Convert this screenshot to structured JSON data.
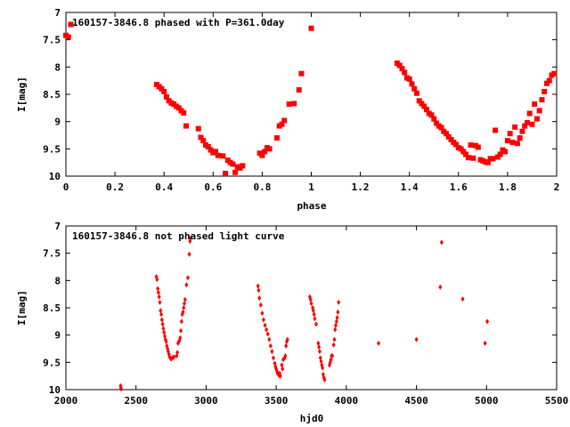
{
  "chart_data": [
    {
      "type": "scatter",
      "title": "160157-3846.8 phased with P=361.0day",
      "xlabel": "phase",
      "ylabel": "I[mag]",
      "xlim": [
        0,
        2
      ],
      "ylim": [
        10,
        7
      ],
      "y_inverted": true,
      "xticks": [
        0,
        0.2,
        0.4,
        0.6,
        0.8,
        1,
        1.2,
        1.4,
        1.6,
        1.8,
        2
      ],
      "xtick_labels": [
        "0",
        "0.2",
        "0.4",
        "0.6",
        "0.8",
        "1",
        "1.2",
        "1.4",
        "1.6",
        "1.8",
        "2"
      ],
      "yticks": [
        7,
        7.5,
        8,
        8.5,
        9,
        9.5,
        10
      ],
      "ytick_labels": [
        "7",
        "7.5",
        "8",
        "8.5",
        "9",
        "9.5",
        "10"
      ],
      "marker": "filled-square",
      "color": "#ff0000",
      "series": [
        {
          "points": [
            [
              0.0,
              7.42
            ],
            [
              0.01,
              7.45
            ],
            [
              0.02,
              7.22
            ],
            [
              0.37,
              8.32
            ],
            [
              0.38,
              8.36
            ],
            [
              0.39,
              8.4
            ],
            [
              0.4,
              8.45
            ],
            [
              0.41,
              8.55
            ],
            [
              0.42,
              8.62
            ],
            [
              0.43,
              8.66
            ],
            [
              0.44,
              8.68
            ],
            [
              0.45,
              8.72
            ],
            [
              0.46,
              8.75
            ],
            [
              0.47,
              8.8
            ],
            [
              0.48,
              8.84
            ],
            [
              0.49,
              9.08
            ],
            [
              0.54,
              9.13
            ],
            [
              0.55,
              9.29
            ],
            [
              0.56,
              9.35
            ],
            [
              0.57,
              9.43
            ],
            [
              0.58,
              9.46
            ],
            [
              0.59,
              9.52
            ],
            [
              0.6,
              9.57
            ],
            [
              0.61,
              9.55
            ],
            [
              0.62,
              9.62
            ],
            [
              0.64,
              9.63
            ],
            [
              0.65,
              9.95
            ],
            [
              0.66,
              9.71
            ],
            [
              0.67,
              9.75
            ],
            [
              0.68,
              9.78
            ],
            [
              0.69,
              9.93
            ],
            [
              0.7,
              9.83
            ],
            [
              0.71,
              9.85
            ],
            [
              0.72,
              9.81
            ],
            [
              0.79,
              9.58
            ],
            [
              0.8,
              9.62
            ],
            [
              0.81,
              9.55
            ],
            [
              0.82,
              9.48
            ],
            [
              0.83,
              9.5
            ],
            [
              0.86,
              9.3
            ],
            [
              0.87,
              9.08
            ],
            [
              0.88,
              9.05
            ],
            [
              0.89,
              8.98
            ],
            [
              0.91,
              8.68
            ],
            [
              0.93,
              8.67
            ],
            [
              0.95,
              8.42
            ],
            [
              0.96,
              8.12
            ],
            [
              1.0,
              7.29
            ],
            [
              1.35,
              7.93
            ],
            [
              1.36,
              7.97
            ],
            [
              1.37,
              8.03
            ],
            [
              1.38,
              8.1
            ],
            [
              1.39,
              8.2
            ],
            [
              1.4,
              8.22
            ],
            [
              1.41,
              8.31
            ],
            [
              1.42,
              8.4
            ],
            [
              1.43,
              8.48
            ],
            [
              1.44,
              8.62
            ],
            [
              1.45,
              8.67
            ],
            [
              1.46,
              8.72
            ],
            [
              1.47,
              8.78
            ],
            [
              1.48,
              8.85
            ],
            [
              1.49,
              8.88
            ],
            [
              1.5,
              8.95
            ],
            [
              1.51,
              9.03
            ],
            [
              1.52,
              9.08
            ],
            [
              1.53,
              9.11
            ],
            [
              1.54,
              9.18
            ],
            [
              1.55,
              9.22
            ],
            [
              1.56,
              9.28
            ],
            [
              1.57,
              9.33
            ],
            [
              1.58,
              9.38
            ],
            [
              1.59,
              9.42
            ],
            [
              1.6,
              9.48
            ],
            [
              1.61,
              9.5
            ],
            [
              1.62,
              9.55
            ],
            [
              1.63,
              9.6
            ],
            [
              1.64,
              9.66
            ],
            [
              1.65,
              9.43
            ],
            [
              1.66,
              9.67
            ],
            [
              1.67,
              9.44
            ],
            [
              1.68,
              9.47
            ],
            [
              1.69,
              9.7
            ],
            [
              1.7,
              9.72
            ],
            [
              1.71,
              9.74
            ],
            [
              1.72,
              9.75
            ],
            [
              1.73,
              9.68
            ],
            [
              1.74,
              9.68
            ],
            [
              1.75,
              9.16
            ],
            [
              1.76,
              9.65
            ],
            [
              1.77,
              9.6
            ],
            [
              1.78,
              9.52
            ],
            [
              1.79,
              9.55
            ],
            [
              1.8,
              9.35
            ],
            [
              1.81,
              9.22
            ],
            [
              1.82,
              9.38
            ],
            [
              1.83,
              9.1
            ],
            [
              1.84,
              9.4
            ],
            [
              1.85,
              9.3
            ],
            [
              1.86,
              9.18
            ],
            [
              1.87,
              9.08
            ],
            [
              1.88,
              9.02
            ],
            [
              1.89,
              8.85
            ],
            [
              1.9,
              9.05
            ],
            [
              1.91,
              8.68
            ],
            [
              1.92,
              8.95
            ],
            [
              1.93,
              8.8
            ],
            [
              1.94,
              8.6
            ],
            [
              1.95,
              8.45
            ],
            [
              1.96,
              8.3
            ],
            [
              1.97,
              8.25
            ],
            [
              1.98,
              8.15
            ],
            [
              1.99,
              8.12
            ]
          ]
        }
      ]
    },
    {
      "type": "scatter",
      "title": "160157-3846.8 not phased light curve",
      "xlabel": "hjd0",
      "ylabel": "I[mag]",
      "xlim": [
        2000,
        5500
      ],
      "ylim": [
        10,
        7
      ],
      "y_inverted": true,
      "xticks": [
        2000,
        2500,
        3000,
        3500,
        4000,
        4500,
        5000,
        5500
      ],
      "xtick_labels": [
        "2000",
        "2500",
        "3000",
        "3500",
        "4000",
        "4500",
        "5000",
        "5500"
      ],
      "yticks": [
        7,
        7.5,
        8,
        8.5,
        9,
        9.5,
        10
      ],
      "ytick_labels": [
        "7",
        "7.5",
        "8",
        "8.5",
        "9",
        "9.5",
        "10"
      ],
      "marker": "diamond",
      "color": "#ff0000",
      "series": [
        {
          "points": [
            [
              2390,
              9.93
            ],
            [
              2392,
              9.97
            ],
            [
              2394,
              9.99
            ],
            [
              2645,
              7.93
            ],
            [
              2650,
              7.98
            ],
            [
              2655,
              8.15
            ],
            [
              2660,
              8.22
            ],
            [
              2665,
              8.3
            ],
            [
              2670,
              8.4
            ],
            [
              2675,
              8.55
            ],
            [
              2680,
              8.62
            ],
            [
              2685,
              8.72
            ],
            [
              2690,
              8.8
            ],
            [
              2695,
              8.88
            ],
            [
              2700,
              8.95
            ],
            [
              2705,
              9.02
            ],
            [
              2710,
              9.08
            ],
            [
              2715,
              9.12
            ],
            [
              2720,
              9.2
            ],
            [
              2725,
              9.25
            ],
            [
              2730,
              9.3
            ],
            [
              2735,
              9.35
            ],
            [
              2740,
              9.4
            ],
            [
              2745,
              9.42
            ],
            [
              2750,
              9.44
            ],
            [
              2760,
              9.42
            ],
            [
              2770,
              9.4
            ],
            [
              2790,
              9.38
            ],
            [
              2795,
              9.32
            ],
            [
              2800,
              9.15
            ],
            [
              2805,
              9.12
            ],
            [
              2810,
              9.1
            ],
            [
              2815,
              9.05
            ],
            [
              2820,
              8.92
            ],
            [
              2825,
              8.75
            ],
            [
              2830,
              8.62
            ],
            [
              2835,
              8.58
            ],
            [
              2840,
              8.5
            ],
            [
              2845,
              8.42
            ],
            [
              2850,
              8.35
            ],
            [
              2860,
              8.08
            ],
            [
              2870,
              7.95
            ],
            [
              2880,
              7.52
            ],
            [
              2885,
              7.28
            ],
            [
              2890,
              7.22
            ],
            [
              3370,
              8.1
            ],
            [
              3375,
              8.18
            ],
            [
              3380,
              8.32
            ],
            [
              3390,
              8.45
            ],
            [
              3400,
              8.6
            ],
            [
              3410,
              8.72
            ],
            [
              3420,
              8.82
            ],
            [
              3430,
              8.9
            ],
            [
              3440,
              8.98
            ],
            [
              3450,
              9.08
            ],
            [
              3460,
              9.2
            ],
            [
              3470,
              9.3
            ],
            [
              3480,
              9.42
            ],
            [
              3490,
              9.52
            ],
            [
              3495,
              9.58
            ],
            [
              3500,
              9.62
            ],
            [
              3505,
              9.66
            ],
            [
              3510,
              9.7
            ],
            [
              3515,
              9.72
            ],
            [
              3520,
              9.74
            ],
            [
              3525,
              9.7
            ],
            [
              3530,
              9.75
            ],
            [
              3540,
              9.55
            ],
            [
              3545,
              9.62
            ],
            [
              3550,
              9.45
            ],
            [
              3560,
              9.42
            ],
            [
              3565,
              9.38
            ],
            [
              3570,
              9.2
            ],
            [
              3575,
              9.12
            ],
            [
              3580,
              9.08
            ],
            [
              3740,
              8.3
            ],
            [
              3745,
              8.35
            ],
            [
              3750,
              8.42
            ],
            [
              3760,
              8.5
            ],
            [
              3765,
              8.55
            ],
            [
              3770,
              8.62
            ],
            [
              3775,
              8.7
            ],
            [
              3785,
              8.8
            ],
            [
              3800,
              9.15
            ],
            [
              3805,
              9.22
            ],
            [
              3810,
              9.3
            ],
            [
              3815,
              9.42
            ],
            [
              3820,
              9.48
            ],
            [
              3825,
              9.55
            ],
            [
              3830,
              9.6
            ],
            [
              3835,
              9.72
            ],
            [
              3840,
              9.78
            ],
            [
              3845,
              9.82
            ],
            [
              3880,
              9.55
            ],
            [
              3885,
              9.5
            ],
            [
              3890,
              9.45
            ],
            [
              3895,
              9.38
            ],
            [
              3900,
              9.38
            ],
            [
              3910,
              9.18
            ],
            [
              3915,
              9.08
            ],
            [
              3920,
              8.9
            ],
            [
              3925,
              8.82
            ],
            [
              3930,
              8.75
            ],
            [
              3935,
              8.68
            ],
            [
              3940,
              8.58
            ],
            [
              3945,
              8.4
            ],
            [
              4230,
              9.15
            ],
            [
              4500,
              9.08
            ],
            [
              4670,
              8.12
            ],
            [
              4680,
              7.3
            ],
            [
              4830,
              8.34
            ],
            [
              4990,
              9.15
            ],
            [
              5005,
              8.75
            ]
          ]
        }
      ]
    }
  ]
}
